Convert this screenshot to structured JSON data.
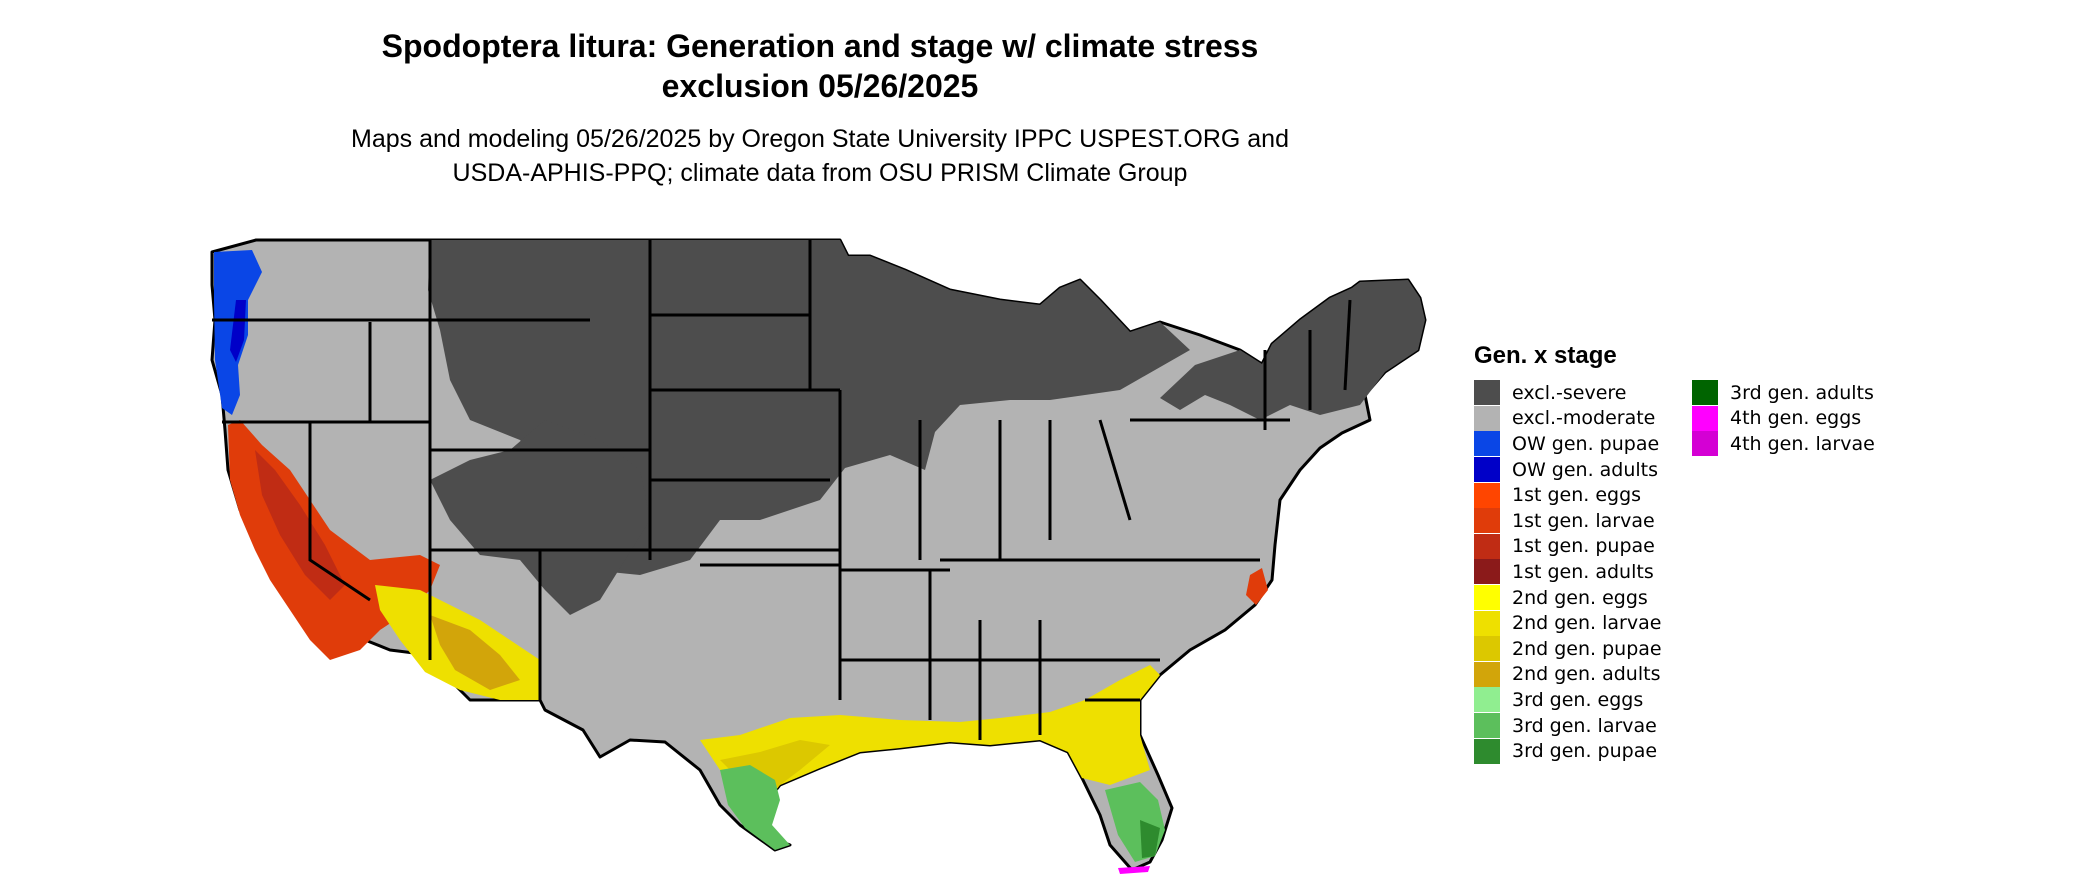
{
  "title_line1": "Spodoptera litura: Generation and stage w/ climate stress",
  "title_line2": "exclusion 05/26/2025",
  "subtitle_line1": "Maps and modeling 05/26/2025 by Oregon State University IPPC USPEST.ORG and",
  "subtitle_line2": "USDA-APHIS-PPQ; climate data from OSU PRISM Climate Group",
  "legend": {
    "title": "Gen. x stage",
    "items": [
      {
        "label": "excl.-severe",
        "color": "#4d4d4d"
      },
      {
        "label": "excl.-moderate",
        "color": "#b3b3b3"
      },
      {
        "label": "OW gen. pupae",
        "color": "#0a46e6"
      },
      {
        "label": "OW gen. adults",
        "color": "#0000c8"
      },
      {
        "label": "1st gen. eggs",
        "color": "#ff4500"
      },
      {
        "label": "1st gen. larvae",
        "color": "#e03c0a"
      },
      {
        "label": "1st gen. pupae",
        "color": "#c02c14"
      },
      {
        "label": "1st gen. adults",
        "color": "#8b1a1a"
      },
      {
        "label": "2nd gen. eggs",
        "color": "#ffff00"
      },
      {
        "label": "2nd gen. larvae",
        "color": "#eee000"
      },
      {
        "label": "2nd gen. pupae",
        "color": "#dcc800"
      },
      {
        "label": "2nd gen. adults",
        "color": "#d2a50a"
      },
      {
        "label": "3rd gen. eggs",
        "color": "#90ee90"
      },
      {
        "label": "3rd gen. larvae",
        "color": "#5cbf5c"
      },
      {
        "label": "3rd gen. pupae",
        "color": "#2e8b2e"
      },
      {
        "label": "3rd gen. adults",
        "color": "#006400"
      },
      {
        "label": "4th gen. eggs",
        "color": "#ff00ff"
      },
      {
        "label": "4th gen. larvae",
        "color": "#d400d4"
      }
    ]
  },
  "map": {
    "region": "Contiguous United States",
    "colors": {
      "state_border": "#000000",
      "excl_severe": "#4d4d4d",
      "excl_moderate": "#b3b3b3"
    }
  }
}
